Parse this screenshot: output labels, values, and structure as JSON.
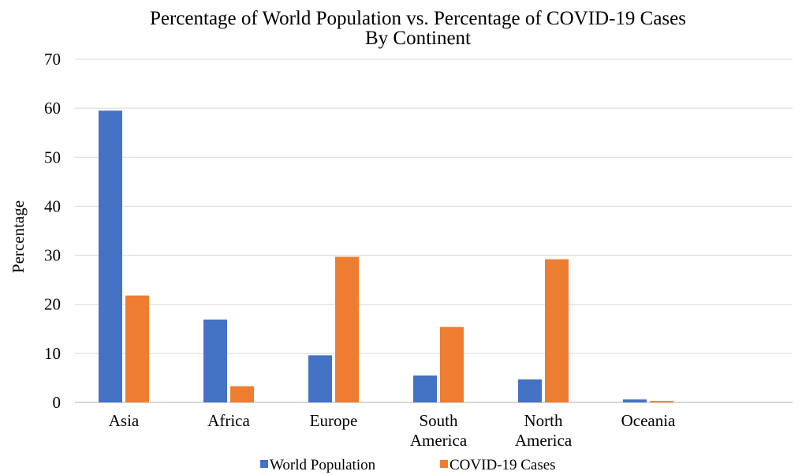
{
  "chart_data": {
    "type": "bar",
    "title": "Percentage of World Population vs. Percentage of COVID-19 Cases",
    "subtitle": "By Continent",
    "xlabel": "",
    "ylabel": "Percentage",
    "ylim": [
      0,
      70
    ],
    "yticks": [
      0,
      10,
      20,
      30,
      40,
      50,
      60,
      70
    ],
    "grid": true,
    "legend_position": "bottom",
    "categories": [
      [
        "Asia"
      ],
      [
        "Africa"
      ],
      [
        "Europe"
      ],
      [
        "South",
        "America"
      ],
      [
        "North",
        "America"
      ],
      [
        "Oceania"
      ]
    ],
    "series": [
      {
        "name": "World Population",
        "color": "#4472C4",
        "values": [
          59.5,
          16.9,
          9.6,
          5.5,
          4.7,
          0.6
        ]
      },
      {
        "name": "COVID-19 Cases",
        "color": "#ED7D31",
        "values": [
          21.8,
          3.3,
          29.7,
          15.4,
          29.2,
          0.3
        ]
      }
    ]
  }
}
